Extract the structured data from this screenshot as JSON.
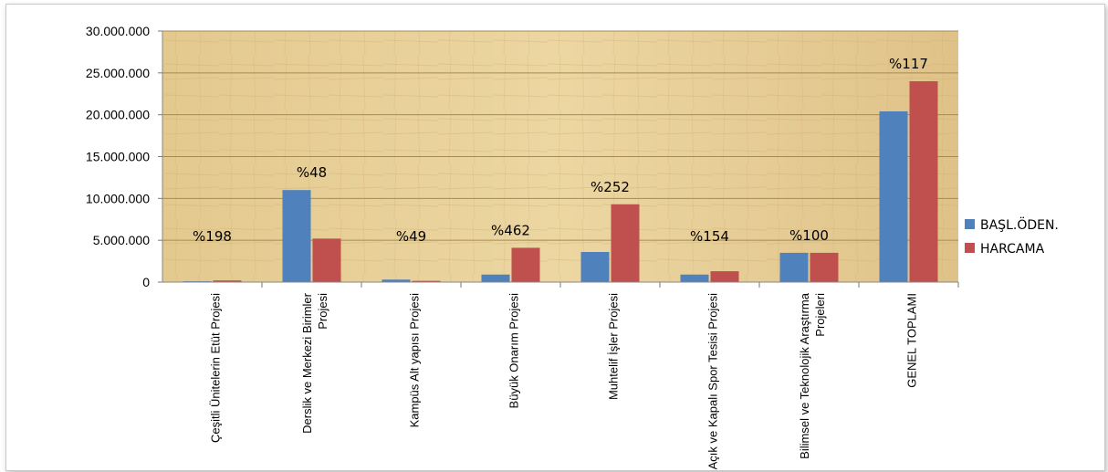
{
  "chart_data": {
    "type": "bar",
    "categories": [
      [
        "Çeşitli Ünitelerin Etüt Projesi"
      ],
      [
        "Derslik ve Merkezi Birimler",
        "Projesi"
      ],
      [
        "Kampüs Alt yapısı Projesi"
      ],
      [
        "Büyük Onarım Projesi"
      ],
      [
        "Muhtelif İşler Projesi"
      ],
      [
        "Açık ve Kapalı Spor Tesisi Projesi"
      ],
      [
        "Bilimsel ve Teknolojik Araştırma",
        "Projeleri"
      ],
      [
        "GENEL TOPLAMI"
      ]
    ],
    "series": [
      {
        "name": "BAŞL.ÖDEN.",
        "color": "#4f81bd",
        "values": [
          100000,
          11000000,
          300000,
          900000,
          3600000,
          900000,
          3500000,
          20400000
        ]
      },
      {
        "name": "HARCAMA",
        "color": "#c0504d",
        "values": [
          200000,
          5200000,
          150000,
          4100000,
          9300000,
          1300000,
          3500000,
          24000000
        ]
      }
    ],
    "annotations": [
      "%198",
      "%48",
      "%49",
      "%462",
      "%252",
      "%154",
      "%100",
      "%117"
    ],
    "yticks": [
      "0",
      "5.000.000",
      "10.000.000",
      "15.000.000",
      "20.000.000",
      "25.000.000",
      "30.000.000"
    ],
    "ylim": [
      0,
      30000000
    ],
    "grid": true,
    "legend_position": "right",
    "plot_background": "#e8cf96",
    "gridline_color": "#a88a55"
  }
}
